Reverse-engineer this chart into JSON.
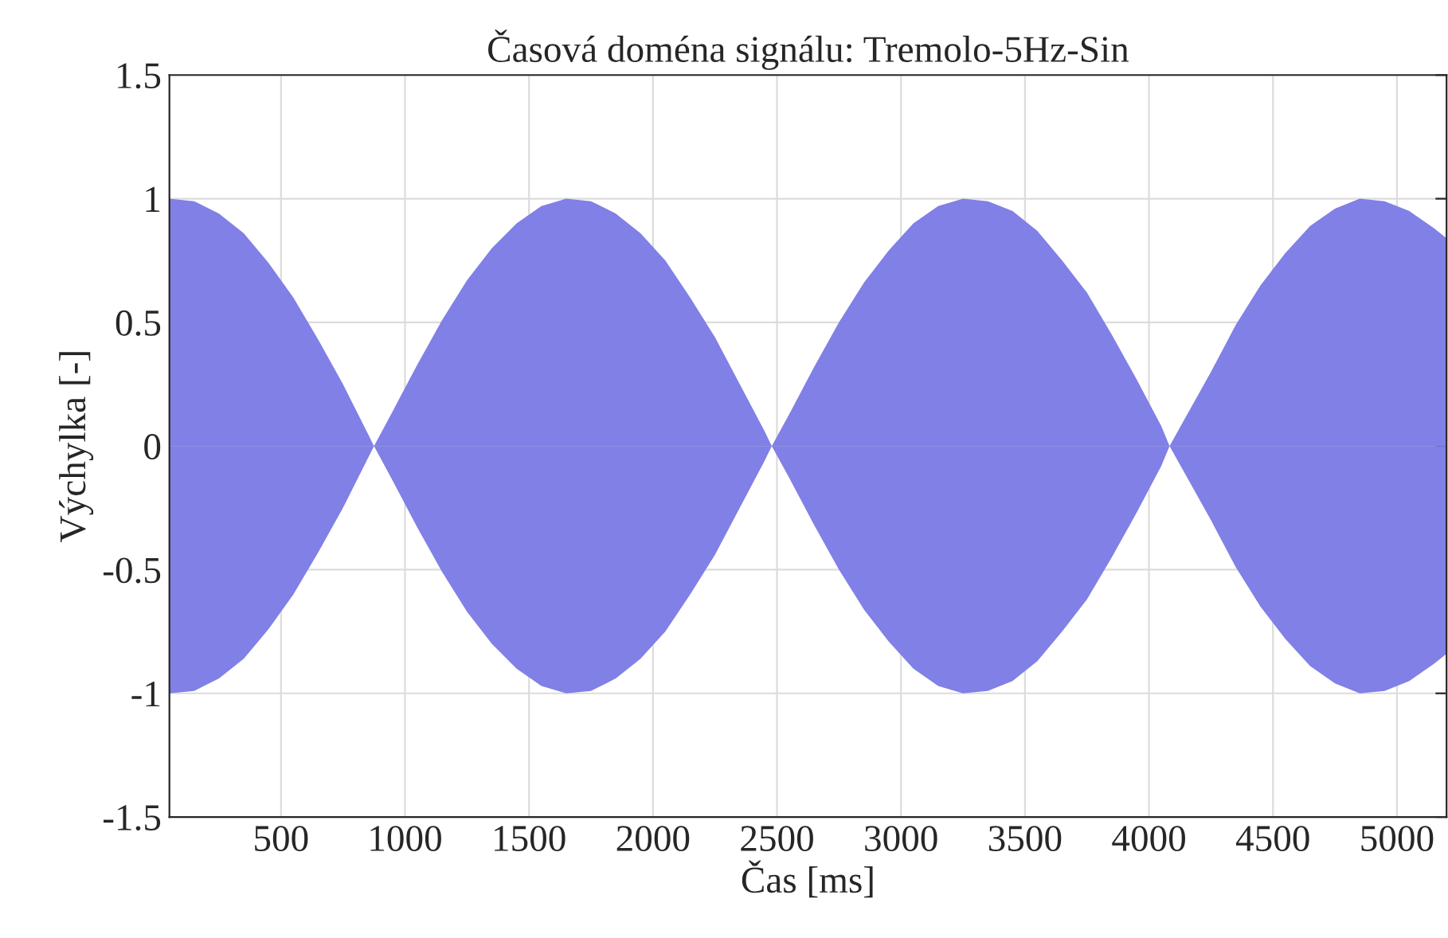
{
  "chart_data": {
    "type": "area",
    "title": "Časová doména signálu: Tremolo-5Hz-Sin",
    "xlabel": "Čas [ms]",
    "ylabel": "Výchylka [-]",
    "x": [
      50,
      150,
      250,
      350,
      450,
      550,
      650,
      750,
      850,
      875,
      950,
      1050,
      1150,
      1250,
      1350,
      1450,
      1550,
      1650,
      1750,
      1850,
      1950,
      2050,
      2150,
      2250,
      2350,
      2450,
      2479,
      2550,
      2650,
      2750,
      2850,
      2950,
      3050,
      3150,
      3250,
      3350,
      3450,
      3550,
      3650,
      3750,
      3850,
      3950,
      4050,
      4083,
      4150,
      4250,
      4350,
      4450,
      4550,
      4650,
      4750,
      4850,
      4950,
      5050,
      5150,
      5200
    ],
    "series": [
      {
        "color": "#8080e6",
        "values": [
          1.0,
          0.99,
          0.94,
          0.86,
          0.74,
          0.6,
          0.43,
          0.25,
          0.05,
          0,
          0.14,
          0.33,
          0.51,
          0.67,
          0.8,
          0.9,
          0.97,
          1.0,
          0.99,
          0.94,
          0.86,
          0.75,
          0.6,
          0.44,
          0.25,
          0.06,
          0,
          0.13,
          0.32,
          0.5,
          0.66,
          0.79,
          0.9,
          0.97,
          1.0,
          0.99,
          0.95,
          0.87,
          0.75,
          0.62,
          0.45,
          0.27,
          0.08,
          0,
          0.12,
          0.3,
          0.49,
          0.65,
          0.78,
          0.89,
          0.96,
          1.0,
          0.99,
          0.95,
          0.88,
          0.84
        ]
      },
      {
        "color": "#8080e6",
        "values": [
          -1.0,
          -0.99,
          -0.94,
          -0.86,
          -0.74,
          -0.6,
          -0.43,
          -0.25,
          -0.05,
          0,
          -0.14,
          -0.33,
          -0.51,
          -0.67,
          -0.8,
          -0.9,
          -0.97,
          -1.0,
          -0.99,
          -0.94,
          -0.86,
          -0.75,
          -0.6,
          -0.44,
          -0.25,
          -0.06,
          0,
          -0.13,
          -0.32,
          -0.5,
          -0.66,
          -0.79,
          -0.9,
          -0.97,
          -1.0,
          -0.99,
          -0.95,
          -0.87,
          -0.75,
          -0.62,
          -0.45,
          -0.27,
          -0.08,
          0,
          -0.12,
          -0.3,
          -0.49,
          -0.65,
          -0.78,
          -0.89,
          -0.96,
          -1.0,
          -0.99,
          -0.95,
          -0.88,
          -0.84
        ]
      }
    ],
    "xlim": [
      50,
      5200
    ],
    "xticks": [
      500,
      1000,
      1500,
      2000,
      2500,
      3000,
      3500,
      4000,
      4500,
      5000
    ],
    "ylim": [
      -1.5,
      1.5
    ],
    "yticks": [
      -1.5,
      -1,
      -0.5,
      0,
      0.5,
      1,
      1.5
    ],
    "grid": true
  }
}
